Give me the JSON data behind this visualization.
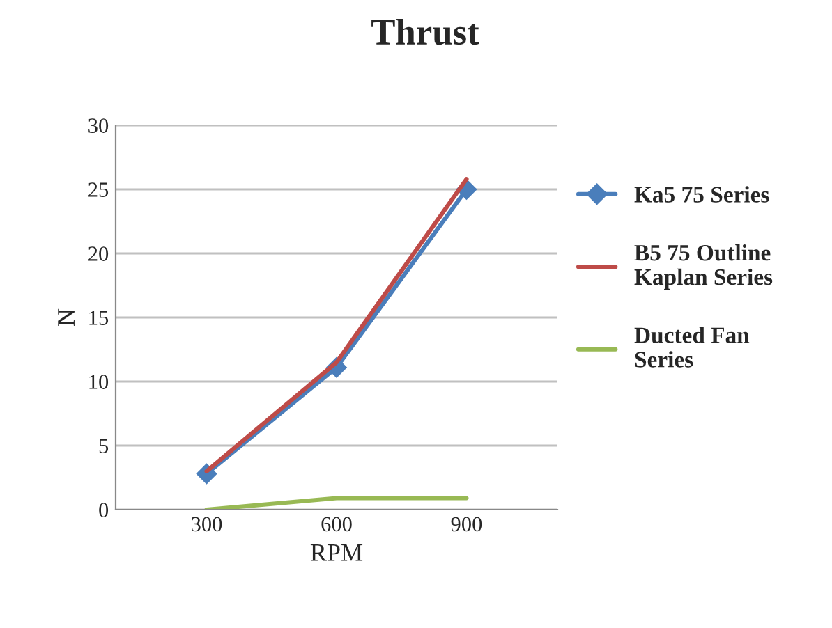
{
  "chart_data": {
    "type": "line",
    "title": "Thrust",
    "xlabel": "RPM",
    "ylabel": "N",
    "categories": [
      "300",
      "600",
      "900"
    ],
    "series": [
      {
        "name": "Ka5 75 Series",
        "color": "#4a7ebb",
        "marker": "diamond",
        "values": [
          2.8,
          11.1,
          25.0
        ]
      },
      {
        "name": "B5 75 Outline Kaplan Series",
        "color": "#be4b48",
        "marker": "none",
        "values": [
          3.0,
          11.5,
          25.8
        ]
      },
      {
        "name": "Ducted Fan Series",
        "color": "#98b954",
        "marker": "none",
        "values": [
          0,
          0.9,
          0.9
        ]
      }
    ],
    "ylim": [
      0,
      30
    ],
    "yticks": [
      0,
      5,
      10,
      15,
      20,
      25,
      30
    ],
    "grid": "y",
    "legend": "right"
  }
}
